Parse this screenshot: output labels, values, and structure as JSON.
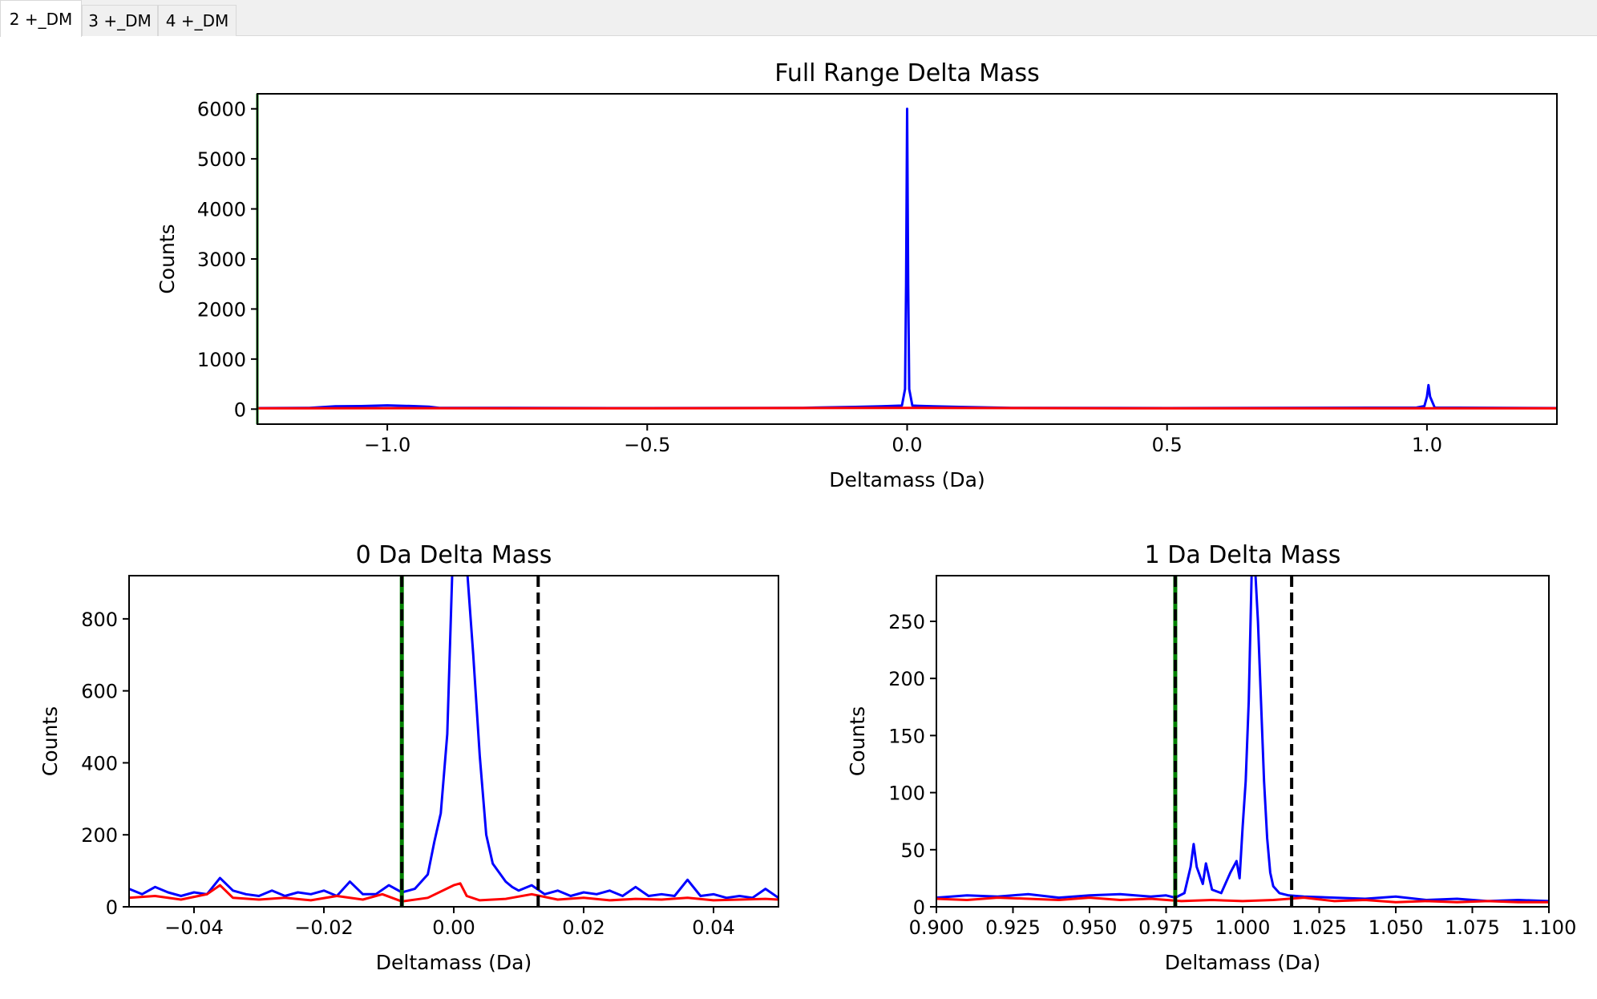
{
  "tabs": [
    {
      "label": "2 +_DM",
      "active": true
    },
    {
      "label": "3 +_DM",
      "active": false
    },
    {
      "label": "4 +_DM",
      "active": false
    }
  ],
  "colors": {
    "target": "#0000ff",
    "decoy": "#ff0000",
    "window_line": "#000000",
    "lower_marker": "#008000"
  },
  "chart_data": [
    {
      "type": "line",
      "title": "Full Range Delta Mass",
      "xlabel": "Deltamass (Da)",
      "ylabel": "Counts",
      "xlim": [
        -1.25,
        1.25
      ],
      "ylim": [
        -300,
        6300
      ],
      "xticks": [
        -1.0,
        -0.5,
        0.0,
        0.5,
        1.0
      ],
      "xtick_labels": [
        "−1.0",
        "−0.5",
        "0.0",
        "0.5",
        "1.0"
      ],
      "yticks": [
        0,
        1000,
        2000,
        3000,
        4000,
        5000,
        6000
      ],
      "ytick_labels": [
        "0",
        "1000",
        "2000",
        "3000",
        "4000",
        "5000",
        "6000"
      ],
      "vlines": [
        {
          "x": -1.25,
          "style": "solid",
          "color": "#008000"
        }
      ],
      "series": [
        {
          "color": "#0000ff",
          "x": [
            -1.25,
            -1.15,
            -1.1,
            -1.05,
            -1.0,
            -0.95,
            -0.92,
            -0.9,
            -0.5,
            -0.2,
            -0.1,
            -0.05,
            -0.01,
            -0.004,
            -0.002,
            0.0,
            0.002,
            0.004,
            0.01,
            0.05,
            0.1,
            0.2,
            0.5,
            0.98,
            0.995,
            1.0,
            1.003,
            1.006,
            1.015,
            1.25
          ],
          "y": [
            20,
            25,
            55,
            60,
            75,
            60,
            50,
            25,
            20,
            25,
            45,
            55,
            70,
            400,
            2500,
            6000,
            2500,
            400,
            70,
            55,
            45,
            25,
            20,
            30,
            60,
            250,
            480,
            250,
            30,
            20
          ]
        },
        {
          "color": "#ff0000",
          "x": [
            -1.25,
            -1.0,
            -0.5,
            0.0,
            0.5,
            1.0,
            1.25
          ],
          "y": [
            15,
            18,
            15,
            25,
            15,
            15,
            15
          ]
        }
      ]
    },
    {
      "type": "line",
      "title": "0 Da Delta Mass",
      "xlabel": "Deltamass (Da)",
      "ylabel": "Counts",
      "xlim": [
        -0.05,
        0.05
      ],
      "ylim": [
        0,
        920
      ],
      "xticks": [
        -0.04,
        -0.02,
        0.0,
        0.02,
        0.04
      ],
      "xtick_labels": [
        "−0.04",
        "−0.02",
        "0.00",
        "0.02",
        "0.04"
      ],
      "yticks": [
        0,
        200,
        400,
        600,
        800
      ],
      "ytick_labels": [
        "0",
        "200",
        "400",
        "600",
        "800"
      ],
      "vlines": [
        {
          "x": -0.008,
          "style": "dashed",
          "color": "#000000",
          "marker_color": "#008000"
        },
        {
          "x": 0.013,
          "style": "dashed",
          "color": "#000000"
        }
      ],
      "series": [
        {
          "color": "#0000ff",
          "x": [
            -0.05,
            -0.048,
            -0.046,
            -0.044,
            -0.042,
            -0.04,
            -0.038,
            -0.036,
            -0.034,
            -0.032,
            -0.03,
            -0.028,
            -0.026,
            -0.024,
            -0.022,
            -0.02,
            -0.018,
            -0.016,
            -0.014,
            -0.012,
            -0.01,
            -0.008,
            -0.006,
            -0.004,
            -0.003,
            -0.002,
            -0.001,
            -0.0002,
            0.0,
            0.002,
            0.003,
            0.004,
            0.005,
            0.006,
            0.007,
            0.008,
            0.009,
            0.01,
            0.012,
            0.014,
            0.016,
            0.018,
            0.02,
            0.022,
            0.024,
            0.026,
            0.028,
            0.03,
            0.032,
            0.034,
            0.036,
            0.038,
            0.04,
            0.042,
            0.044,
            0.046,
            0.048,
            0.05
          ],
          "y": [
            50,
            35,
            55,
            40,
            30,
            40,
            35,
            80,
            45,
            35,
            30,
            45,
            30,
            40,
            35,
            45,
            30,
            70,
            35,
            35,
            60,
            40,
            50,
            90,
            180,
            260,
            480,
            950,
            950,
            950,
            700,
            420,
            200,
            120,
            95,
            70,
            55,
            45,
            60,
            35,
            45,
            30,
            40,
            35,
            45,
            30,
            55,
            30,
            35,
            30,
            75,
            30,
            35,
            25,
            30,
            25,
            50,
            25
          ]
        },
        {
          "color": "#ff0000",
          "x": [
            -0.05,
            -0.046,
            -0.042,
            -0.038,
            -0.036,
            -0.034,
            -0.03,
            -0.026,
            -0.022,
            -0.018,
            -0.014,
            -0.011,
            -0.008,
            -0.004,
            0.0,
            0.001,
            0.002,
            0.004,
            0.008,
            0.012,
            0.016,
            0.02,
            0.024,
            0.028,
            0.032,
            0.036,
            0.04,
            0.044,
            0.048,
            0.05
          ],
          "y": [
            25,
            30,
            20,
            35,
            60,
            25,
            20,
            25,
            18,
            30,
            20,
            35,
            15,
            25,
            60,
            65,
            30,
            18,
            22,
            35,
            20,
            25,
            18,
            22,
            20,
            25,
            18,
            20,
            22,
            20
          ]
        }
      ]
    },
    {
      "type": "line",
      "title": "1 Da Delta Mass",
      "xlabel": "Deltamass (Da)",
      "ylabel": "Counts",
      "xlim": [
        0.9,
        1.1
      ],
      "ylim": [
        0,
        290
      ],
      "xticks": [
        0.9,
        0.925,
        0.95,
        0.975,
        1.0,
        1.025,
        1.05,
        1.075,
        1.1
      ],
      "xtick_labels": [
        "0.900",
        "0.925",
        "0.950",
        "0.975",
        "1.000",
        "1.025",
        "1.050",
        "1.075",
        "1.100"
      ],
      "yticks": [
        0,
        50,
        100,
        150,
        200,
        250
      ],
      "ytick_labels": [
        "0",
        "50",
        "100",
        "150",
        "200",
        "250"
      ],
      "vlines": [
        {
          "x": 0.978,
          "style": "dashed",
          "color": "#000000",
          "marker_color": "#008000"
        },
        {
          "x": 1.016,
          "style": "dashed",
          "color": "#000000"
        }
      ],
      "series": [
        {
          "color": "#0000ff",
          "x": [
            0.9,
            0.91,
            0.92,
            0.93,
            0.94,
            0.95,
            0.96,
            0.97,
            0.975,
            0.978,
            0.981,
            0.983,
            0.984,
            0.985,
            0.987,
            0.988,
            0.99,
            0.993,
            0.996,
            0.998,
            0.999,
            1.0,
            1.001,
            1.002,
            1.003,
            1.004,
            1.005,
            1.006,
            1.007,
            1.008,
            1.009,
            1.01,
            1.012,
            1.015,
            1.02,
            1.03,
            1.04,
            1.05,
            1.06,
            1.07,
            1.08,
            1.09,
            1.1
          ],
          "y": [
            8,
            10,
            9,
            11,
            8,
            10,
            11,
            9,
            10,
            8,
            12,
            35,
            55,
            35,
            20,
            38,
            15,
            12,
            30,
            40,
            25,
            70,
            110,
            180,
            300,
            300,
            250,
            180,
            110,
            60,
            30,
            18,
            12,
            10,
            9,
            8,
            7,
            9,
            6,
            7,
            5,
            6,
            5
          ]
        },
        {
          "color": "#ff0000",
          "x": [
            0.9,
            0.91,
            0.92,
            0.93,
            0.94,
            0.95,
            0.96,
            0.97,
            0.98,
            0.99,
            1.0,
            1.01,
            1.02,
            1.03,
            1.04,
            1.05,
            1.06,
            1.07,
            1.08,
            1.09,
            1.1
          ],
          "y": [
            7,
            6,
            8,
            7,
            6,
            8,
            6,
            7,
            5,
            6,
            5,
            6,
            8,
            5,
            6,
            4,
            5,
            4,
            5,
            4,
            4
          ]
        }
      ]
    }
  ]
}
